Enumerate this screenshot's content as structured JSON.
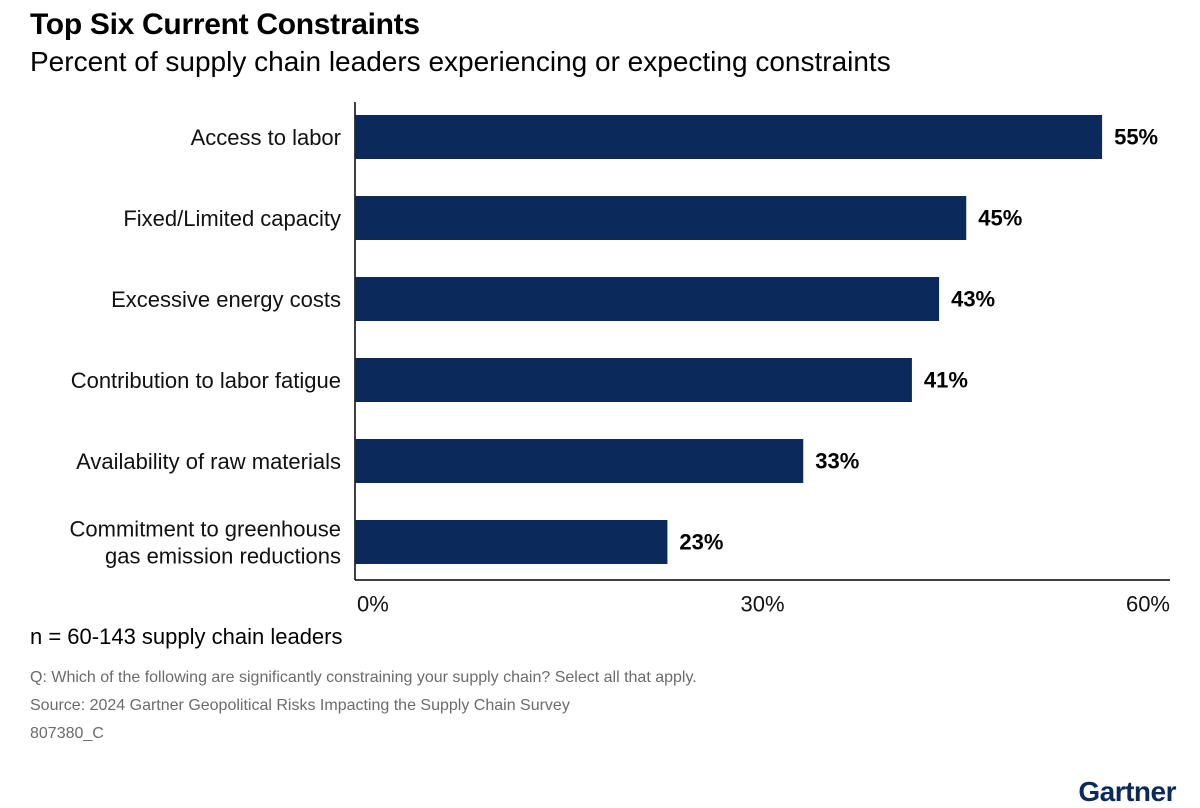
{
  "title": "Top Six Current Constraints",
  "subtitle": "Percent of supply chain leaders experiencing or expecting constraints",
  "note": "n = 60-143 supply chain leaders",
  "footnotes": {
    "question": "Q: Which of the following are significantly constraining your supply chain? Select all that apply.",
    "source": "Source: 2024 Gartner Geopolitical Risks Impacting the Supply Chain Survey",
    "code": "807380_C"
  },
  "logo_text": "Gartner",
  "colors": {
    "bar": "#0b2a5b",
    "axis": "#000000"
  },
  "chart_data": {
    "type": "bar",
    "orientation": "horizontal",
    "categories": [
      [
        "Access to labor"
      ],
      [
        "Fixed/Limited capacity"
      ],
      [
        "Excessive energy costs"
      ],
      [
        "Contribution to labor fatigue"
      ],
      [
        "Availability of raw materials"
      ],
      [
        "Commitment to greenhouse",
        "gas emission reductions"
      ]
    ],
    "values": [
      55,
      45,
      43,
      41,
      33,
      23
    ],
    "value_labels": [
      "55%",
      "45%",
      "43%",
      "41%",
      "33%",
      "23%"
    ],
    "xlim": [
      0,
      60
    ],
    "ticks": [
      0,
      30,
      60
    ],
    "tick_labels": [
      "0%",
      "30%",
      "60%"
    ],
    "grid": false,
    "legend": "none"
  }
}
